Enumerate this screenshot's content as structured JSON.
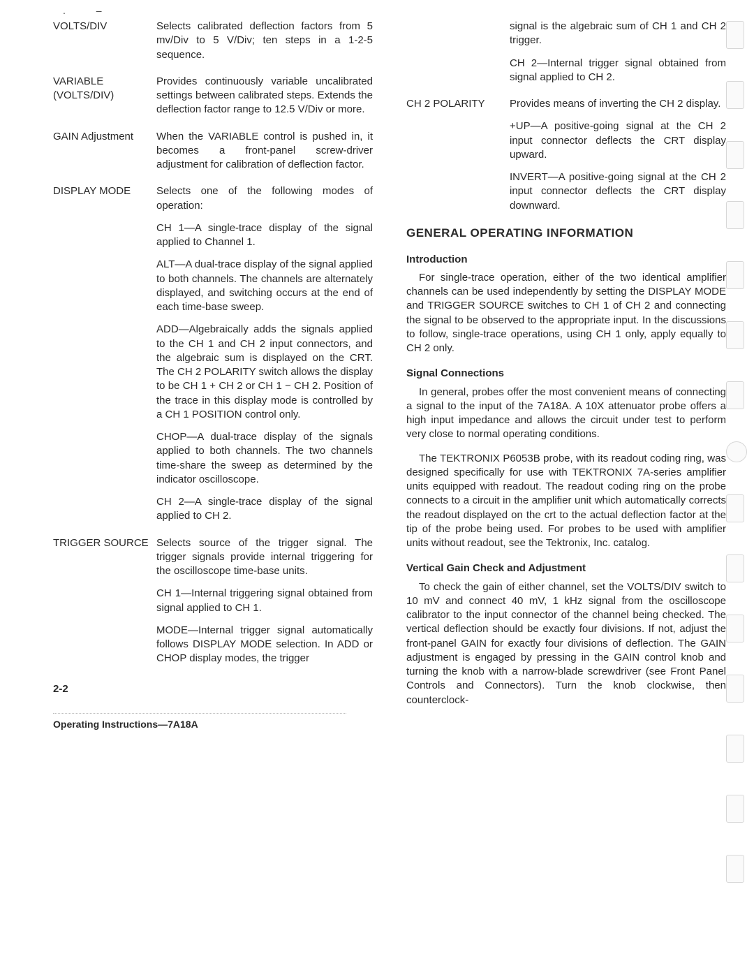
{
  "top_marks": ". –",
  "left_column": {
    "defs": [
      {
        "term": "VOLTS/DIV",
        "body": [
          "Selects calibrated deflection factors from 5 mv/Div to 5 V/Div; ten steps in a 1-2-5 sequence."
        ]
      },
      {
        "term": "VARIABLE (VOLTS/DIV)",
        "body": [
          "Provides continuously variable uncalibrated settings between calibrated steps. Extends the deflection factor range to 12.5 V/Div or more."
        ]
      },
      {
        "term": "GAIN Adjustment",
        "body": [
          "When the VARIABLE control is pushed in, it becomes a front-panel screw-driver adjustment for calibration of deflection factor."
        ]
      },
      {
        "term": "DISPLAY MODE",
        "body": [
          "Selects one of the following modes of operation:",
          "CH 1—A single-trace display of the signal applied to Channel 1.",
          "ALT—A dual-trace display of the signal applied to both channels. The channels are alternately displayed, and switching occurs at the end of each time-base sweep.",
          "ADD—Algebraically adds the signals applied to the CH 1 and CH 2 input connectors, and the algebraic sum is displayed on the CRT. The CH 2 POLARITY switch allows the display to be CH 1 + CH 2 or CH 1 − CH 2. Position of the trace in this display mode is controlled by a CH 1 POSITION control only.",
          "CHOP—A dual-trace display of the signals applied to both channels. The two channels time-share the sweep as determined by the indicator oscilloscope.",
          "CH 2—A single-trace display of the signal applied to CH 2."
        ]
      },
      {
        "term": "TRIGGER SOURCE",
        "body": [
          "Selects source of the trigger signal. The trigger signals provide internal triggering for the oscilloscope time-base units.",
          "CH 1—Internal triggering signal obtained from signal applied to CH 1.",
          "MODE—Internal trigger signal automatically follows DISPLAY MODE selection. In ADD or CHOP display modes, the trigger"
        ]
      }
    ]
  },
  "right_column": {
    "top_defs": [
      {
        "term": "",
        "body": [
          "signal is the algebraic sum of CH 1 and CH 2 trigger.",
          "CH 2—Internal trigger signal obtained from signal applied to CH 2."
        ]
      },
      {
        "term": "CH 2 POLARITY",
        "body": [
          "Provides means of inverting the CH 2 display.",
          "+UP—A positive-going signal at the CH 2 input connector deflects the CRT display upward.",
          "INVERT—A positive-going signal at the CH 2 input connector deflects the CRT display downward."
        ]
      }
    ],
    "section_title": "GENERAL OPERATING INFORMATION",
    "intro_heading": "Introduction",
    "intro_para": "For single-trace operation, either of the two identical amplifier channels can be used independently by setting the DISPLAY MODE and TRIGGER SOURCE switches to CH 1 of CH 2 and connecting the signal to be observed to the appropriate input. In the discussions to follow, single-trace operations, using CH 1 only, apply equally to CH 2 only.",
    "signal_heading": "Signal Connections",
    "signal_para1": "In general, probes offer the most convenient means of connecting a signal to the input of the 7A18A. A 10X attenuator probe offers a high input impedance and allows the circuit under test to perform very close to normal operating conditions.",
    "signal_para2": "The TEKTRONIX P6053B probe, with its readout coding ring, was designed specifically for use with TEKTRONIX 7A-series amplifier units equipped with readout. The readout coding ring on the probe connects to a circuit in the amplifier unit which automatically corrects the readout displayed on the crt to the actual deflection factor at the tip of the probe being used. For probes to be used with amplifier units without readout, see the Tektronix, Inc. catalog.",
    "gain_heading": "Vertical Gain Check and Adjustment",
    "gain_para": "To check the gain of either channel, set the VOLTS/DIV switch to 10 mV and connect 40 mV, 1 kHz signal from the oscilloscope calibrator to the input connector of the channel being checked. The vertical deflection should be exactly four divisions. If not, adjust the front-panel GAIN for exactly four divisions of deflection. The GAIN adjustment is engaged by pressing in the GAIN control knob and turning the knob with a narrow-blade screwdriver (see Front Panel Controls and Connectors). Turn the knob clockwise, then counterclock-"
  },
  "page_number": "2-2",
  "footer": "Operating Instructions—7A18A"
}
